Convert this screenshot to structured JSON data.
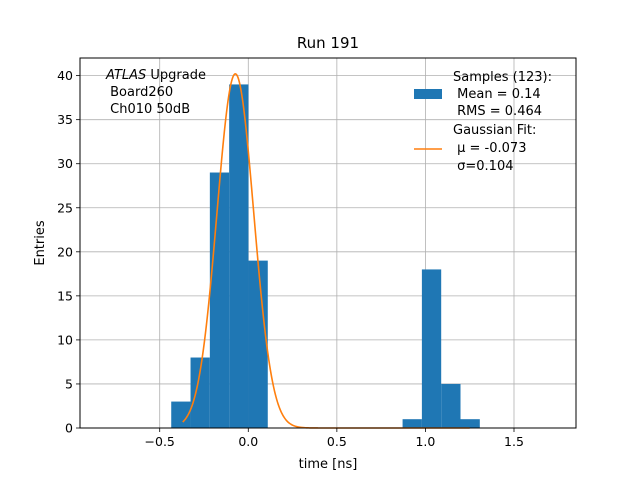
{
  "chart_data": {
    "type": "bar",
    "title": "Run 191",
    "xlabel": "time [ns]",
    "ylabel": "Entries",
    "xlim": [
      -0.95,
      1.85
    ],
    "ylim": [
      0,
      42
    ],
    "xticks": [
      -0.5,
      0.0,
      0.5,
      1.0,
      1.5
    ],
    "xtick_labels": [
      "−0.5",
      "0.0",
      "0.5",
      "1.0",
      "1.5"
    ],
    "yticks": [
      0,
      5,
      10,
      15,
      20,
      25,
      30,
      35,
      40
    ],
    "ytick_labels": [
      "0",
      "5",
      "10",
      "15",
      "20",
      "25",
      "30",
      "35",
      "40"
    ],
    "grid": true,
    "histogram": {
      "name": "Samples (123):",
      "color": "#1f77b4",
      "bin_width": 0.109,
      "bin_lefts": [
        -0.435,
        -0.326,
        -0.217,
        -0.108,
        0.001,
        0.871,
        0.98,
        1.089,
        1.198
      ],
      "counts": [
        3,
        8,
        29,
        39,
        19,
        1,
        18,
        5,
        1
      ]
    },
    "fit": {
      "name": "Gaussian Fit:",
      "color": "#ff7f0e",
      "mu": -0.073,
      "sigma": 0.104,
      "amplitude": 40.2,
      "x_range": [
        -0.37,
        1.25
      ]
    },
    "legend": {
      "position": "top-right",
      "samples_title": "Samples (123):",
      "samples_mean": " Mean = 0.14",
      "samples_rms": " RMS = 0.464",
      "fit_title": "Gaussian Fit:",
      "fit_mu": " μ = -0.073",
      "fit_sigma": " σ=0.104"
    },
    "annotation": {
      "atlas": "ATLAS",
      "upgrade": " Upgrade",
      "board": " Board260",
      "channel": " Ch010 50dB"
    }
  }
}
